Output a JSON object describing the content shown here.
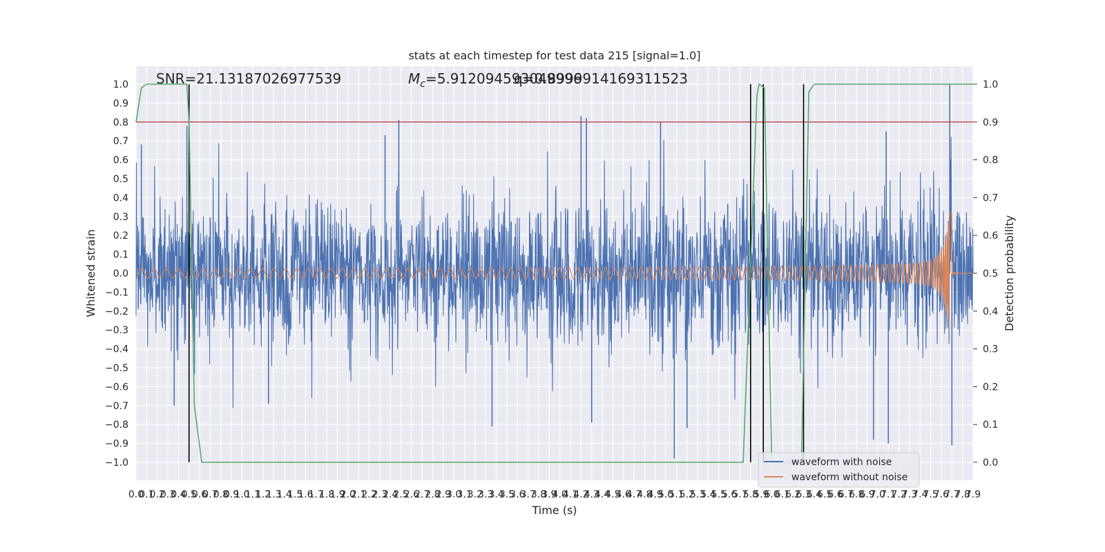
{
  "chart_data": {
    "type": "line",
    "title": "stats at each timestep for test data 215 [signal=1.0]",
    "xlabel": "Time (s)",
    "ylabel": "Whitened strain",
    "y2label": "Detection probability",
    "xlim": [
      0.0,
      7.9
    ],
    "ylim": [
      -1.0,
      1.0
    ],
    "y2lim": [
      0.0,
      1.0
    ],
    "x_ticks": [
      "0.0",
      "0.1",
      "0.2",
      "0.3",
      "0.4",
      "0.5",
      "0.6",
      "0.7",
      "0.8",
      "0.9",
      "1.0",
      "1.1",
      "1.2",
      "1.3",
      "1.4",
      "1.5",
      "1.6",
      "1.7",
      "1.8",
      "1.9",
      "2.0",
      "2.1",
      "2.2",
      "2.3",
      "2.4",
      "2.5",
      "2.6",
      "2.7",
      "2.8",
      "2.9",
      "3.0",
      "3.1",
      "3.2",
      "3.3",
      "3.4",
      "3.5",
      "3.6",
      "3.7",
      "3.8",
      "3.9",
      "4.0",
      "4.1",
      "4.2",
      "4.3",
      "4.4",
      "4.5",
      "4.6",
      "4.7",
      "4.8",
      "4.9",
      "5.0",
      "5.1",
      "5.2",
      "5.3",
      "5.4",
      "5.5",
      "5.6",
      "5.7",
      "5.8",
      "5.9",
      "6.0",
      "6.1",
      "6.2",
      "6.3",
      "6.4",
      "6.5",
      "6.6",
      "6.7",
      "6.8",
      "6.9",
      "7.0",
      "7.1",
      "7.2",
      "7.3",
      "7.4",
      "7.5",
      "7.6",
      "7.7",
      "7.8",
      "7.9"
    ],
    "y_ticks": [
      "1.0",
      "0.9",
      "0.8",
      "0.7",
      "0.6",
      "0.5",
      "0.4",
      "0.3",
      "0.2",
      "0.1",
      "0.0",
      "−0.1",
      "−0.2",
      "−0.3",
      "−0.4",
      "−0.5",
      "−0.6",
      "−0.7",
      "−0.8",
      "−0.9",
      "−1.0"
    ],
    "y2_ticks": [
      "1.0",
      "0.9",
      "0.8",
      "0.7",
      "0.6",
      "0.5",
      "0.4",
      "0.3",
      "0.2",
      "0.1",
      "0.0"
    ],
    "annotations": {
      "snr": "SNR=21.13187026977539",
      "mc_symbol": "M",
      "mc_sub": "c",
      "mc_text": "=5.912094593049996",
      "q_text": "q=0.8999914169311523"
    },
    "threshold_line": {
      "y2": 0.9,
      "color": "#c44e52"
    },
    "vertical_lines": [
      0.5,
      5.8,
      5.92,
      6.3
    ],
    "series": [
      {
        "name": "waveform with noise",
        "color": "#4c72b0",
        "noise_std": 0.19,
        "samples": 2400,
        "spikes": [
          {
            "x": 0.05,
            "y": 0.68
          },
          {
            "x": 0.48,
            "y": 0.78
          },
          {
            "x": 2.35,
            "y": 0.73
          },
          {
            "x": 2.48,
            "y": 0.81
          },
          {
            "x": 4.2,
            "y": 0.83
          },
          {
            "x": 4.25,
            "y": 0.82
          },
          {
            "x": 4.95,
            "y": 0.8
          },
          {
            "x": 7.08,
            "y": 0.75
          },
          {
            "x": 7.68,
            "y": 1.0
          },
          {
            "x": 3.36,
            "y": -0.81
          },
          {
            "x": 4.3,
            "y": -0.79
          },
          {
            "x": 5.08,
            "y": -0.98
          },
          {
            "x": 5.2,
            "y": -0.82
          },
          {
            "x": 6.96,
            "y": -0.88
          },
          {
            "x": 7.1,
            "y": -0.9
          },
          {
            "x": 7.7,
            "y": -0.91
          },
          {
            "x": 1.25,
            "y": -0.69
          },
          {
            "x": 0.36,
            "y": -0.7
          }
        ]
      },
      {
        "name": "waveform without noise",
        "color": "#dd8452",
        "chirp": {
          "base_amp": 0.025,
          "peak_amp": 0.58,
          "merger_time": 7.68,
          "f0": 8.5
        }
      },
      {
        "name": "detection probability",
        "axis": "y2",
        "color": "#55a868",
        "x": [
          0.0,
          0.05,
          0.1,
          0.48,
          0.5,
          0.55,
          0.62,
          5.73,
          5.86,
          5.88,
          5.93,
          6.0,
          6.28,
          6.35,
          6.4,
          7.9
        ],
        "values": [
          0.9,
          0.99,
          1.0,
          1.0,
          0.9,
          0.15,
          0.0,
          0.0,
          0.97,
          1.0,
          0.99,
          0.0,
          0.0,
          0.98,
          1.0,
          1.0
        ]
      }
    ],
    "legend": {
      "position": "lower-right",
      "entries": [
        "waveform with noise",
        "waveform without noise"
      ]
    },
    "grid": true,
    "background": "#eaeaf2"
  }
}
